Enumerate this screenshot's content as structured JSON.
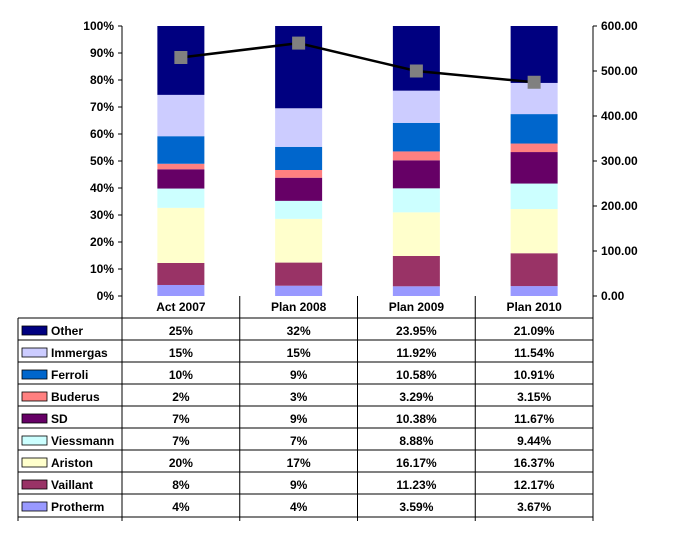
{
  "chart_data": {
    "type": "bar",
    "stacked": true,
    "percent_stacked": true,
    "categories": [
      "Act 2007",
      "Plan 2008",
      "Plan 2009",
      "Plan 2010"
    ],
    "y_left": {
      "ticks": [
        "0%",
        "10%",
        "20%",
        "30%",
        "40%",
        "50%",
        "60%",
        "70%",
        "80%",
        "90%",
        "100%"
      ],
      "ylim": [
        0,
        100
      ]
    },
    "y_right": {
      "ticks": [
        "0.00",
        "100.00",
        "200.00",
        "300.00",
        "400.00",
        "500.00",
        "600.00"
      ],
      "ylim": [
        0,
        600
      ]
    },
    "grid": false,
    "legend": "data-table",
    "series": [
      {
        "name": "Protherm",
        "color": "#9999ff",
        "values": [
          4,
          4,
          3.59,
          3.67
        ],
        "labels": [
          "4%",
          "4%",
          "3.59%",
          "3.67%"
        ]
      },
      {
        "name": "Vaillant",
        "color": "#993366",
        "values": [
          8,
          9,
          11.23,
          12.17
        ],
        "labels": [
          "8%",
          "9%",
          "11.23%",
          "12.17%"
        ]
      },
      {
        "name": "Ariston",
        "color": "#ffffcc",
        "values": [
          20,
          17,
          16.17,
          16.37
        ],
        "labels": [
          "20%",
          "17%",
          "16.17%",
          "16.37%"
        ]
      },
      {
        "name": "Viessmann",
        "color": "#ccffff",
        "values": [
          7,
          7,
          8.88,
          9.44
        ],
        "labels": [
          "7%",
          "7%",
          "8.88%",
          "9.44%"
        ]
      },
      {
        "name": "SD",
        "color": "#660066",
        "values": [
          7,
          9,
          10.38,
          11.67
        ],
        "labels": [
          "7%",
          "9%",
          "10.38%",
          "11.67%"
        ]
      },
      {
        "name": "Buderus",
        "color": "#ff8080",
        "values": [
          2,
          3,
          3.29,
          3.15
        ],
        "labels": [
          "2%",
          "3%",
          "3.29%",
          "3.15%"
        ]
      },
      {
        "name": "Ferroli",
        "color": "#0066cc",
        "values": [
          10,
          9,
          10.58,
          10.91
        ],
        "labels": [
          "10%",
          "9%",
          "10.58%",
          "10.91%"
        ]
      },
      {
        "name": "Immergas",
        "color": "#ccccff",
        "values": [
          15,
          15,
          11.92,
          11.54
        ],
        "labels": [
          "15%",
          "15%",
          "11.92%",
          "11.54%"
        ]
      },
      {
        "name": "Other",
        "color": "#000080",
        "values": [
          25,
          32,
          23.95,
          21.09
        ],
        "labels": [
          "25%",
          "32%",
          "23.95%",
          "21.09%"
        ]
      }
    ],
    "line_series": {
      "axis": "right",
      "color": "#000000",
      "marker_color": "#808080",
      "values": [
        530,
        562,
        500,
        475
      ]
    }
  }
}
